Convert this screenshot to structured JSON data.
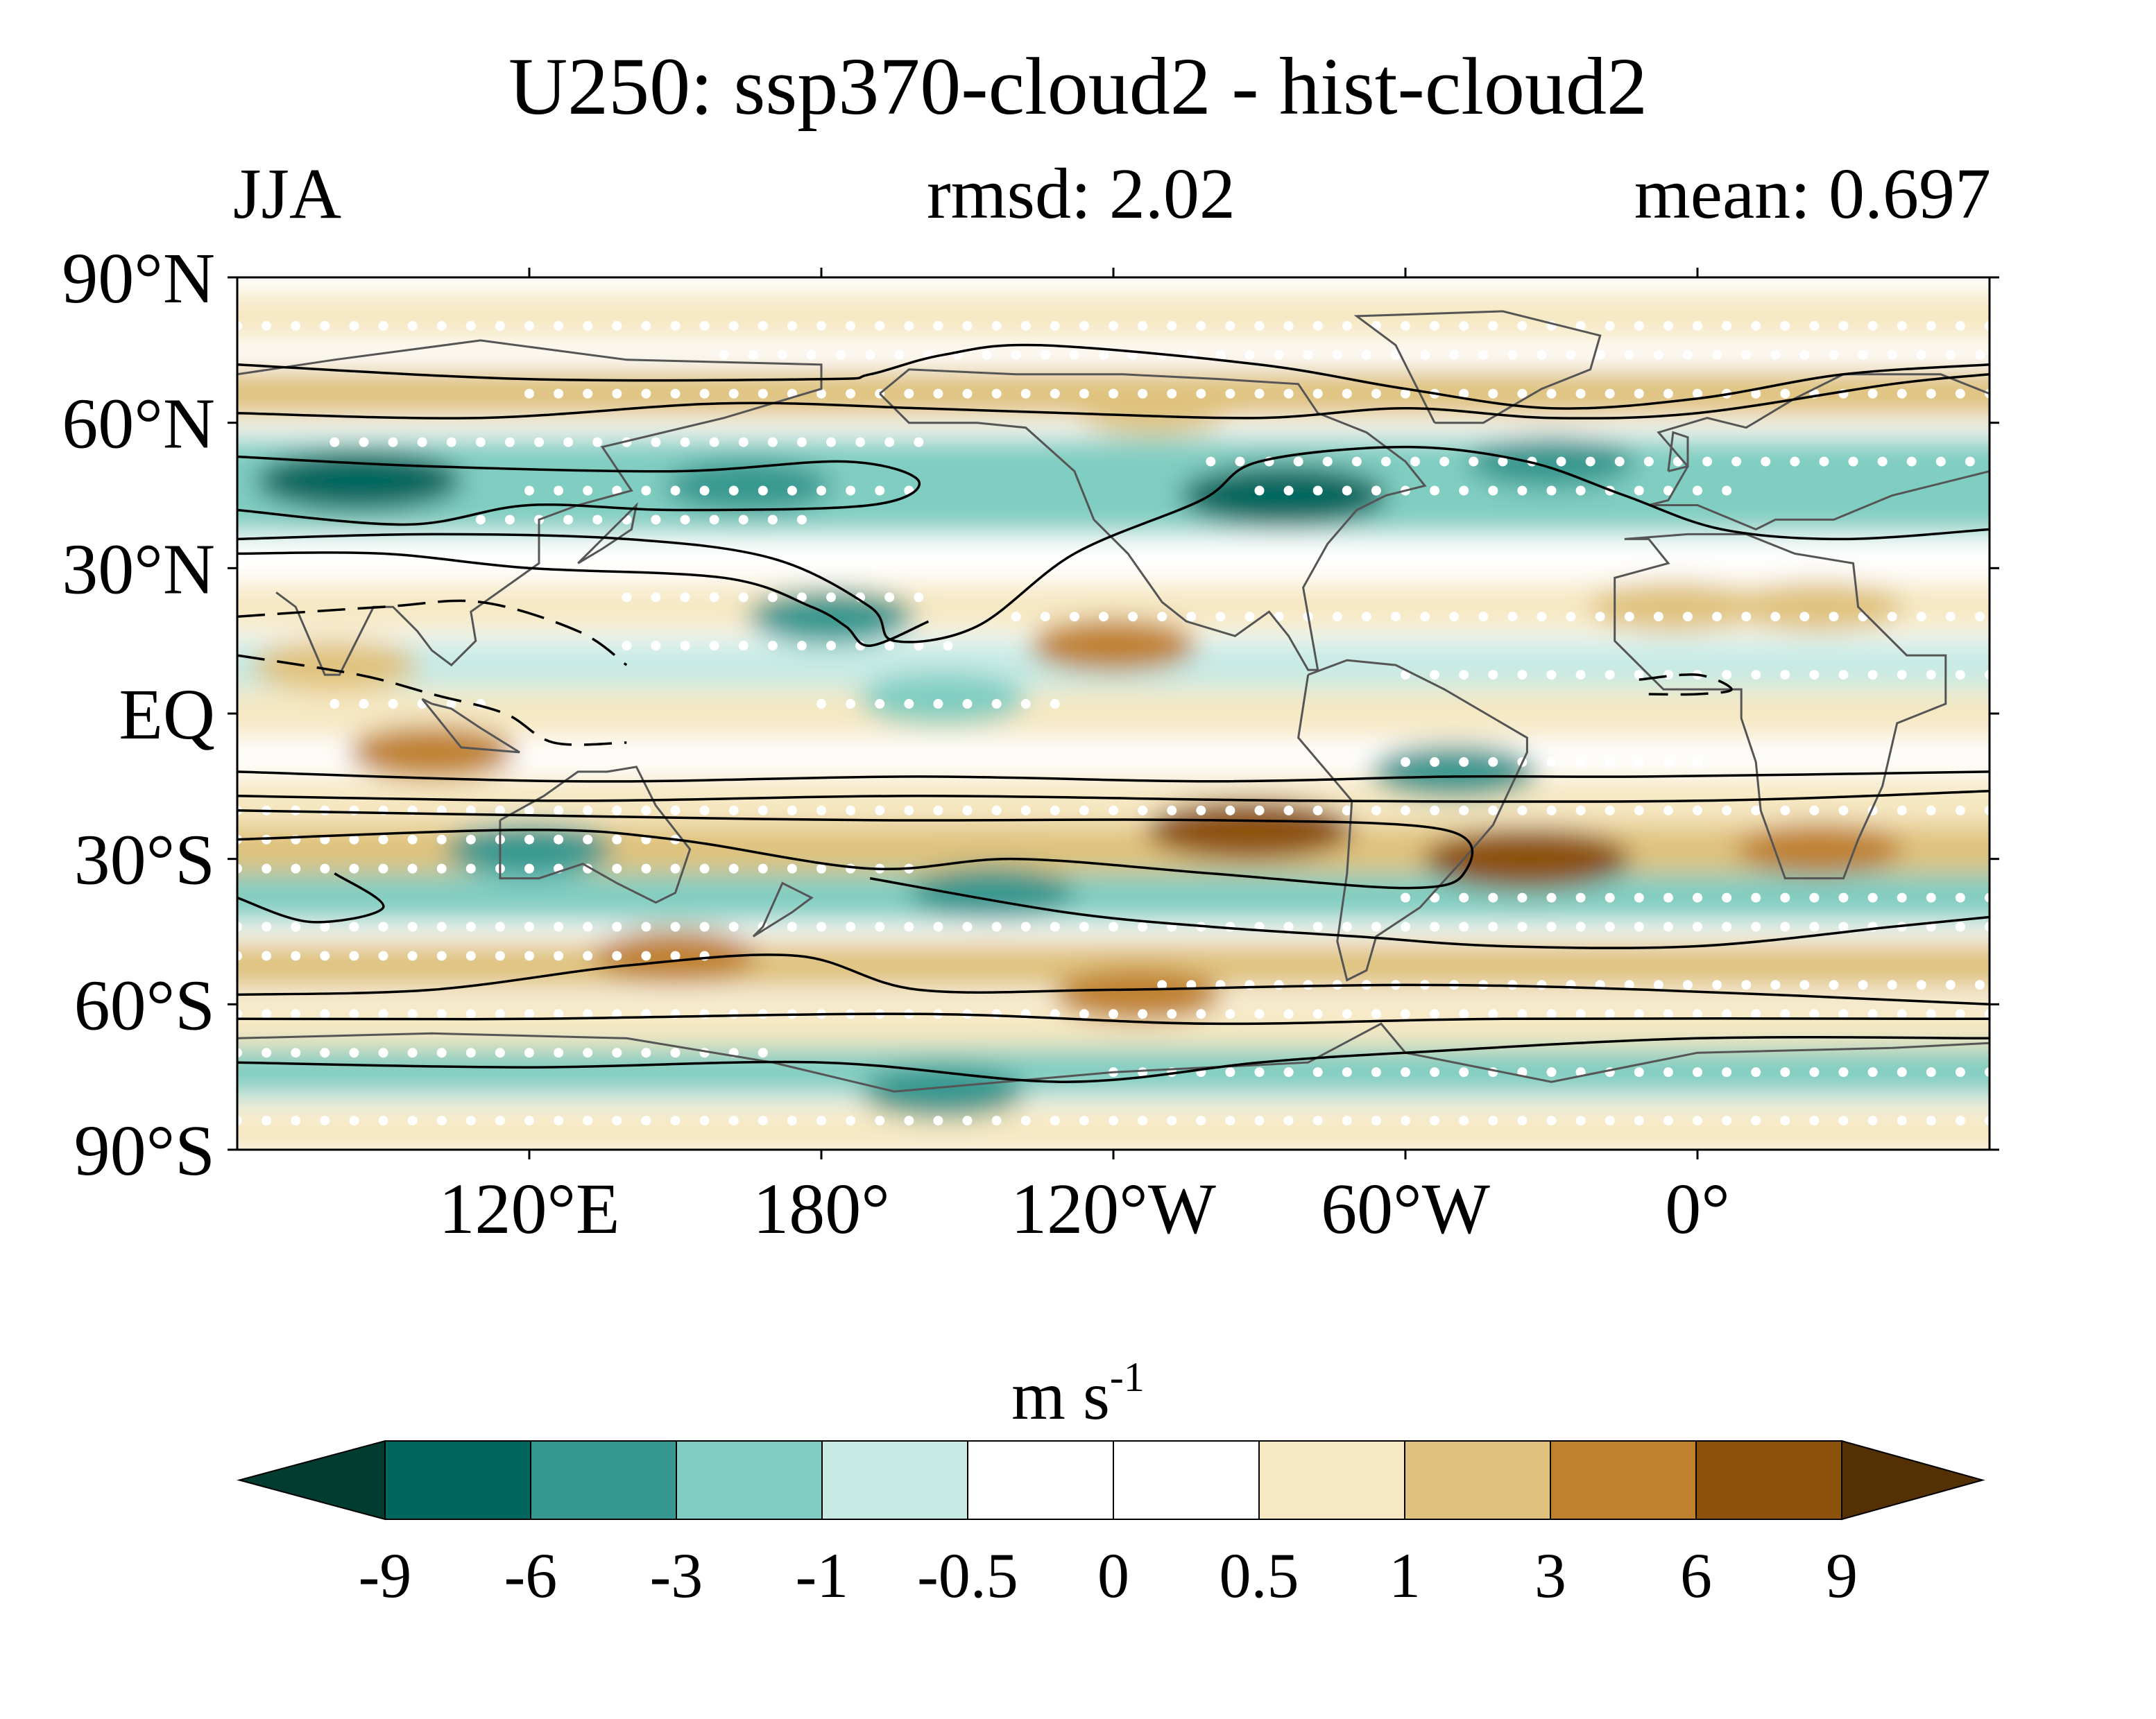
{
  "title": "U250: ssp370-cloud2 - hist-cloud2",
  "season": "JJA",
  "rmsd": "rmsd: 2.02",
  "mean": "mean: 0.697",
  "units": {
    "base": "m s",
    "exponent": "-1"
  },
  "chart_data": {
    "type": "heatmap",
    "projection": "cylindrical-equidistant",
    "variable": "U250",
    "xlim": [
      60,
      420
    ],
    "ylim": [
      -90,
      90
    ],
    "lat_ticks": [
      "90°N",
      "60°N",
      "30°N",
      "EQ",
      "30°S",
      "60°S",
      "90°S"
    ],
    "lat_tick_values": [
      90,
      60,
      30,
      0,
      -30,
      -60,
      -90
    ],
    "lon_ticks": [
      "120°E",
      "180°",
      "120°W",
      "60°W",
      "0°"
    ],
    "lon_tick_values": [
      120,
      180,
      240,
      300,
      360
    ],
    "colorbar": {
      "levels": [
        "-9",
        "-6",
        "-3",
        "-1",
        "-0.5",
        "0",
        "0.5",
        "1",
        "3",
        "6",
        "9"
      ],
      "colors": [
        "#003c30",
        "#01665e",
        "#35978f",
        "#80cdc1",
        "#c7eae5",
        "#ffffff",
        "#ffffff",
        "#f6e8c3",
        "#dfc27d",
        "#bf812d",
        "#8c510a",
        "#543005"
      ],
      "extend": "both"
    },
    "anomaly_bands": [
      {
        "lat": 82,
        "value": 0.7
      },
      {
        "lat": 66,
        "value": 1.5
      },
      {
        "lat": 52,
        "value": -2.5
      },
      {
        "lat": 42,
        "value": -1.2
      },
      {
        "lat": 22,
        "value": 0.8
      },
      {
        "lat": 10,
        "value": -0.6
      },
      {
        "lat": 0,
        "value": 0.7
      },
      {
        "lat": -18,
        "value": 0.6
      },
      {
        "lat": -28,
        "value": 2.0
      },
      {
        "lat": -38,
        "value": -1.2
      },
      {
        "lat": -52,
        "value": 2.0
      },
      {
        "lat": -64,
        "value": 0.8
      },
      {
        "lat": -74,
        "value": -2.0
      },
      {
        "lat": -86,
        "value": 0.5
      }
    ],
    "anomaly_blobs": [
      {
        "lon": 85,
        "lat": 48,
        "value": -6.5
      },
      {
        "lon": 275,
        "lat": 45,
        "value": -6.5
      },
      {
        "lon": 330,
        "lat": 52,
        "value": -3.5
      },
      {
        "lon": 165,
        "lat": 47,
        "value": -3.5
      },
      {
        "lon": 182,
        "lat": 20,
        "value": -3.5
      },
      {
        "lon": 205,
        "lat": 3,
        "value": -2.0
      },
      {
        "lon": 310,
        "lat": -12,
        "value": -3.5
      },
      {
        "lon": 120,
        "lat": -28,
        "value": -3.2
      },
      {
        "lon": 215,
        "lat": -37,
        "value": -5.0
      },
      {
        "lon": 205,
        "lat": -78,
        "value": -4.0
      },
      {
        "lon": 240,
        "lat": 14,
        "value": 4.5
      },
      {
        "lon": 100,
        "lat": -8,
        "value": 4.5
      },
      {
        "lon": 268,
        "lat": -24,
        "value": 7.0
      },
      {
        "lon": 325,
        "lat": -30,
        "value": 7.0
      },
      {
        "lon": 385,
        "lat": -28,
        "value": 4.5
      },
      {
        "lon": 150,
        "lat": -50,
        "value": 5.0
      },
      {
        "lon": 245,
        "lat": -58,
        "value": 4.0
      },
      {
        "lon": 248,
        "lat": 63,
        "value": 2.0
      },
      {
        "lon": 385,
        "lat": 22,
        "value": 2.5
      },
      {
        "lon": 355,
        "lat": 22,
        "value": 2.0
      },
      {
        "lon": 80,
        "lat": 10,
        "value": 1.5
      }
    ],
    "climatology_contours": [
      {
        "style": "solid",
        "points": [
          [
            60,
            72
          ],
          [
            120,
            69
          ],
          [
            180,
            69
          ],
          [
            190,
            70
          ],
          [
            205,
            74
          ],
          [
            225,
            76
          ],
          [
            270,
            72
          ],
          [
            300,
            67
          ],
          [
            330,
            63
          ],
          [
            360,
            65
          ],
          [
            390,
            70
          ],
          [
            420,
            72
          ]
        ]
      },
      {
        "style": "solid",
        "points": [
          [
            60,
            62
          ],
          [
            110,
            61
          ],
          [
            160,
            64
          ],
          [
            200,
            63
          ],
          [
            230,
            62
          ],
          [
            270,
            61
          ],
          [
            300,
            63
          ],
          [
            330,
            61
          ],
          [
            360,
            62
          ],
          [
            400,
            68
          ],
          [
            420,
            70
          ]
        ]
      },
      {
        "style": "solid",
        "points": [
          [
            60,
            53
          ],
          [
            100,
            51
          ],
          [
            150,
            50
          ],
          [
            185,
            52
          ],
          [
            200,
            48
          ],
          [
            190,
            43
          ],
          [
            150,
            42
          ],
          [
            120,
            43
          ],
          [
            95,
            39
          ],
          [
            60,
            42
          ]
        ]
      },
      {
        "style": "solid",
        "points": [
          [
            60,
            36
          ],
          [
            100,
            37
          ],
          [
            140,
            36
          ],
          [
            170,
            32
          ],
          [
            190,
            22
          ],
          [
            195,
            15
          ],
          [
            212,
            18
          ],
          [
            232,
            33
          ],
          [
            258,
            44
          ],
          [
            270,
            52
          ],
          [
            300,
            55
          ],
          [
            325,
            52
          ],
          [
            345,
            45
          ],
          [
            365,
            38
          ],
          [
            390,
            36
          ],
          [
            420,
            38
          ]
        ]
      },
      {
        "style": "solid",
        "points": [
          [
            60,
            33
          ],
          [
            90,
            33
          ],
          [
            120,
            30
          ],
          [
            160,
            28
          ],
          [
            178,
            22
          ],
          [
            185,
            18
          ],
          [
            190,
            14
          ],
          [
            202,
            19
          ]
        ]
      },
      {
        "style": "solid",
        "points": [
          [
            60,
            -12
          ],
          [
            130,
            -14
          ],
          [
            200,
            -13
          ],
          [
            260,
            -14
          ],
          [
            310,
            -13
          ],
          [
            350,
            -13
          ],
          [
            420,
            -12
          ]
        ]
      },
      {
        "style": "solid",
        "points": [
          [
            60,
            -17
          ],
          [
            130,
            -18
          ],
          [
            200,
            -17
          ],
          [
            280,
            -18
          ],
          [
            360,
            -18
          ],
          [
            420,
            -16
          ]
        ]
      },
      {
        "style": "solid",
        "points": [
          [
            60,
            -20
          ],
          [
            120,
            -21
          ],
          [
            190,
            -22
          ],
          [
            260,
            -22
          ],
          [
            308,
            -24
          ],
          [
            312,
            -33
          ],
          [
            300,
            -36
          ],
          [
            260,
            -33
          ],
          [
            220,
            -30
          ],
          [
            190,
            -32
          ],
          [
            150,
            -26
          ],
          [
            120,
            -24
          ],
          [
            60,
            -26
          ]
        ]
      },
      {
        "style": "solid",
        "points": [
          [
            60,
            -38
          ],
          [
            75,
            -43
          ],
          [
            90,
            -40
          ],
          [
            80,
            -33
          ]
        ]
      },
      {
        "style": "solid",
        "points": [
          [
            190,
            -34
          ],
          [
            230,
            -41
          ],
          [
            260,
            -44
          ],
          [
            290,
            -46
          ],
          [
            320,
            -48
          ],
          [
            360,
            -48
          ],
          [
            400,
            -44
          ],
          [
            420,
            -42
          ]
        ]
      },
      {
        "style": "solid",
        "points": [
          [
            60,
            -58
          ],
          [
            100,
            -57
          ],
          [
            140,
            -52
          ],
          [
            175,
            -50
          ],
          [
            200,
            -57
          ],
          [
            240,
            -57
          ],
          [
            300,
            -56
          ],
          [
            350,
            -57
          ],
          [
            420,
            -60
          ]
        ]
      },
      {
        "style": "solid",
        "points": [
          [
            60,
            -63
          ],
          [
            120,
            -63
          ],
          [
            200,
            -62
          ],
          [
            260,
            -64
          ],
          [
            320,
            -63
          ],
          [
            420,
            -63
          ]
        ]
      },
      {
        "style": "solid",
        "points": [
          [
            60,
            -72
          ],
          [
            120,
            -73
          ],
          [
            180,
            -72
          ],
          [
            230,
            -76
          ],
          [
            270,
            -72
          ],
          [
            300,
            -70
          ],
          [
            360,
            -67
          ],
          [
            420,
            -67
          ]
        ]
      },
      {
        "style": "dashed",
        "points": [
          [
            60,
            20
          ],
          [
            90,
            22
          ],
          [
            110,
            23
          ],
          [
            130,
            17
          ],
          [
            140,
            10
          ]
        ]
      },
      {
        "style": "dashed",
        "points": [
          [
            60,
            12
          ],
          [
            85,
            8
          ],
          [
            100,
            4
          ],
          [
            115,
            0
          ],
          [
            125,
            -6
          ],
          [
            140,
            -6
          ]
        ]
      },
      {
        "style": "dashed",
        "points": [
          [
            348,
            7
          ],
          [
            360,
            8
          ],
          [
            367,
            5
          ],
          [
            360,
            4
          ],
          [
            350,
            4
          ]
        ]
      }
    ]
  }
}
